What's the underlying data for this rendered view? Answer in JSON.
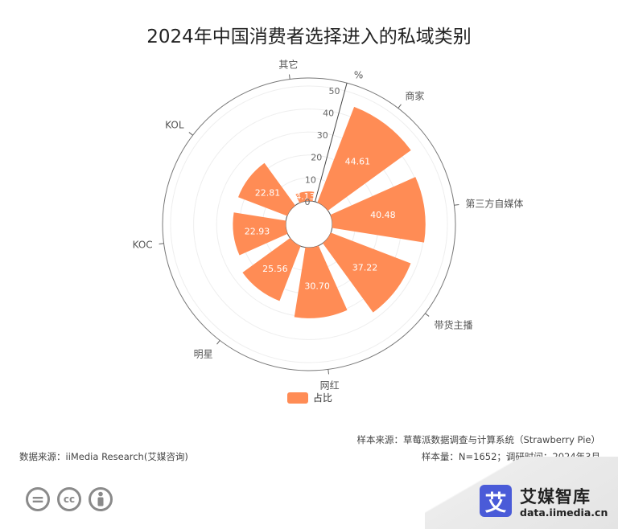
{
  "chart_data": {
    "type": "bar",
    "subtype": "polar-bar",
    "title": "2024年中国消费者选择进入的私域类别",
    "categories": [
      "商家",
      "第三方自媒体",
      "带货主播",
      "网红",
      "明星",
      "KOC",
      "KOL",
      "其它"
    ],
    "series": [
      {
        "name": "占比",
        "values": [
          44.61,
          40.48,
          37.22,
          30.7,
          25.56,
          22.93,
          22.81,
          4.13
        ]
      }
    ],
    "radial_axis": {
      "label": "%",
      "min": 0,
      "max": 50,
      "ticks": [
        "0",
        "10",
        "20",
        "30",
        "40",
        "50"
      ]
    },
    "legend_position": "bottom",
    "colors": {
      "bar": "#FF8C55",
      "axis": "#666666"
    }
  },
  "footer": {
    "sample_source": "样本来源：草莓派数据调查与计算系统（Strawberry Pie）",
    "sample_size": "样本量：N=1652；调研时间：2024年3月",
    "data_source": "数据来源：iiMedia Research(艾媒咨询)"
  },
  "license_icons": [
    "equals-icon",
    "cc-icon",
    "person-icon"
  ],
  "brand": {
    "logo_char": "艾",
    "name": "艾媒智库",
    "url": "data.iimedia.cn"
  }
}
